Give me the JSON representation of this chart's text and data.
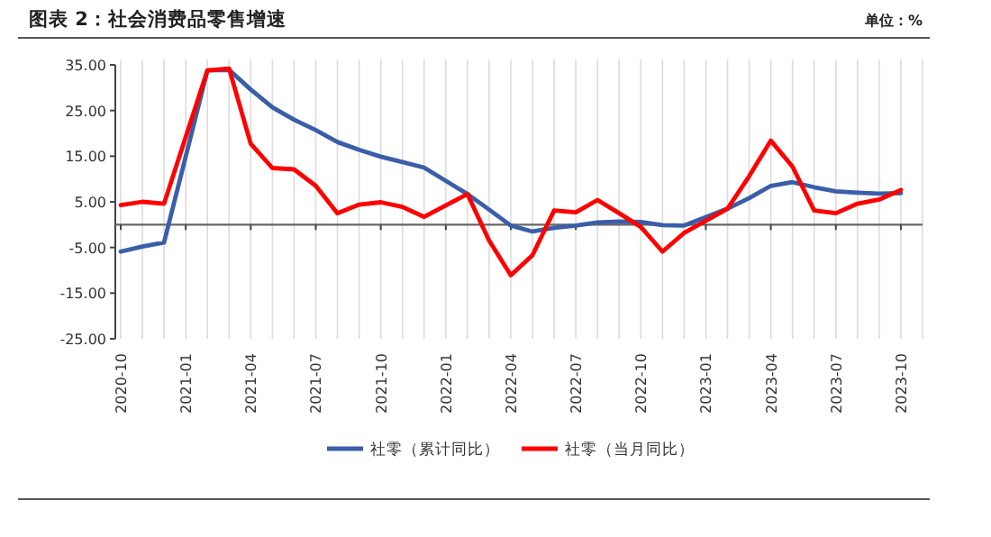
{
  "chart_data": {
    "type": "line",
    "title": "图表 2：社会消费品零售增速",
    "annotations": [
      "单位：%"
    ],
    "xlim": [
      "2020-10",
      "2023-11"
    ],
    "xticks": [
      {
        "value": "2020-10",
        "label": "2020-10"
      },
      {
        "value": "2020-11",
        "label": null
      },
      {
        "value": "2020-12",
        "label": null
      },
      {
        "value": "2021-01",
        "label": "2021-01"
      },
      {
        "value": "2021-02",
        "label": null
      },
      {
        "value": "2021-03",
        "label": null
      },
      {
        "value": "2021-04",
        "label": "2021-04"
      },
      {
        "value": "2021-05",
        "label": null
      },
      {
        "value": "2021-06",
        "label": null
      },
      {
        "value": "2021-07",
        "label": "2021-07"
      },
      {
        "value": "2021-08",
        "label": null
      },
      {
        "value": "2021-09",
        "label": null
      },
      {
        "value": "2021-10",
        "label": "2021-10"
      },
      {
        "value": "2021-11",
        "label": null
      },
      {
        "value": "2021-12",
        "label": null
      },
      {
        "value": "2022-01",
        "label": "2022-01"
      },
      {
        "value": "2022-02",
        "label": null
      },
      {
        "value": "2022-03",
        "label": null
      },
      {
        "value": "2022-04",
        "label": "2022-04"
      },
      {
        "value": "2022-05",
        "label": null
      },
      {
        "value": "2022-06",
        "label": null
      },
      {
        "value": "2022-07",
        "label": "2022-07"
      },
      {
        "value": "2022-08",
        "label": null
      },
      {
        "value": "2022-09",
        "label": null
      },
      {
        "value": "2022-10",
        "label": "2022-10"
      },
      {
        "value": "2022-11",
        "label": null
      },
      {
        "value": "2022-12",
        "label": null
      },
      {
        "value": "2023-01",
        "label": "2023-01"
      },
      {
        "value": "2023-02",
        "label": null
      },
      {
        "value": "2023-03",
        "label": null
      },
      {
        "value": "2023-04",
        "label": "2023-04"
      },
      {
        "value": "2023-05",
        "label": null
      },
      {
        "value": "2023-06",
        "label": null
      },
      {
        "value": "2023-07",
        "label": "2023-07"
      },
      {
        "value": "2023-08",
        "label": null
      },
      {
        "value": "2023-09",
        "label": null
      },
      {
        "value": "2023-10",
        "label": "2023-10"
      },
      {
        "value": "2023-11",
        "label": null
      }
    ],
    "ylim": [
      -25,
      35
    ],
    "yticks": [
      {
        "value": 35,
        "label": "35.00"
      },
      {
        "value": 25,
        "label": "25.00"
      },
      {
        "value": 15,
        "label": "15.00"
      },
      {
        "value": 5,
        "label": "5.00"
      },
      {
        "value": -5,
        "label": "-5.00"
      },
      {
        "value": -15,
        "label": "-15.00"
      },
      {
        "value": -25,
        "label": "-25.00"
      }
    ],
    "grid": "x",
    "legend": "bottom",
    "marker": "none",
    "line_style": "solid",
    "series": [
      {
        "name": "社零（累计同比）",
        "color": "#3a5ea8",
        "x": [
          "2020-10",
          "2020-11",
          "2020-12",
          "2021-02",
          "2021-03",
          "2021-04",
          "2021-05",
          "2021-06",
          "2021-07",
          "2021-08",
          "2021-09",
          "2021-10",
          "2021-11",
          "2021-12",
          "2022-02",
          "2022-03",
          "2022-04",
          "2022-05",
          "2022-06",
          "2022-07",
          "2022-08",
          "2022-09",
          "2022-10",
          "2022-11",
          "2022-12",
          "2023-02",
          "2023-03",
          "2023-04",
          "2023-05",
          "2023-06",
          "2023-07",
          "2023-08",
          "2023-09",
          "2023-10"
        ],
        "values": [
          -5.9,
          -4.8,
          -3.9,
          33.8,
          33.9,
          29.6,
          25.7,
          23.0,
          20.7,
          18.1,
          16.4,
          14.9,
          13.7,
          12.5,
          6.7,
          3.3,
          -0.2,
          -1.5,
          -0.7,
          -0.2,
          0.5,
          0.7,
          0.6,
          -0.1,
          -0.2,
          3.5,
          5.8,
          8.5,
          9.3,
          8.2,
          7.3,
          7.0,
          6.8,
          6.9
        ]
      },
      {
        "name": "社零（当月同比）",
        "color": "#ff0000",
        "x": [
          "2020-10",
          "2020-11",
          "2020-12",
          "2021-02",
          "2021-03",
          "2021-04",
          "2021-05",
          "2021-06",
          "2021-07",
          "2021-08",
          "2021-09",
          "2021-10",
          "2021-11",
          "2021-12",
          "2022-02",
          "2022-03",
          "2022-04",
          "2022-05",
          "2022-06",
          "2022-07",
          "2022-08",
          "2022-09",
          "2022-10",
          "2022-11",
          "2022-12",
          "2023-02",
          "2023-03",
          "2023-04",
          "2023-05",
          "2023-06",
          "2023-07",
          "2023-08",
          "2023-09",
          "2023-10"
        ],
        "values": [
          4.3,
          5.0,
          4.6,
          33.8,
          34.2,
          17.7,
          12.4,
          12.1,
          8.5,
          2.5,
          4.4,
          4.9,
          3.9,
          1.7,
          6.7,
          -3.5,
          -11.1,
          -6.7,
          3.1,
          2.7,
          5.4,
          2.5,
          -0.5,
          -5.9,
          -1.8,
          3.5,
          10.6,
          18.4,
          12.7,
          3.1,
          2.5,
          4.6,
          5.5,
          7.6
        ]
      }
    ]
  }
}
